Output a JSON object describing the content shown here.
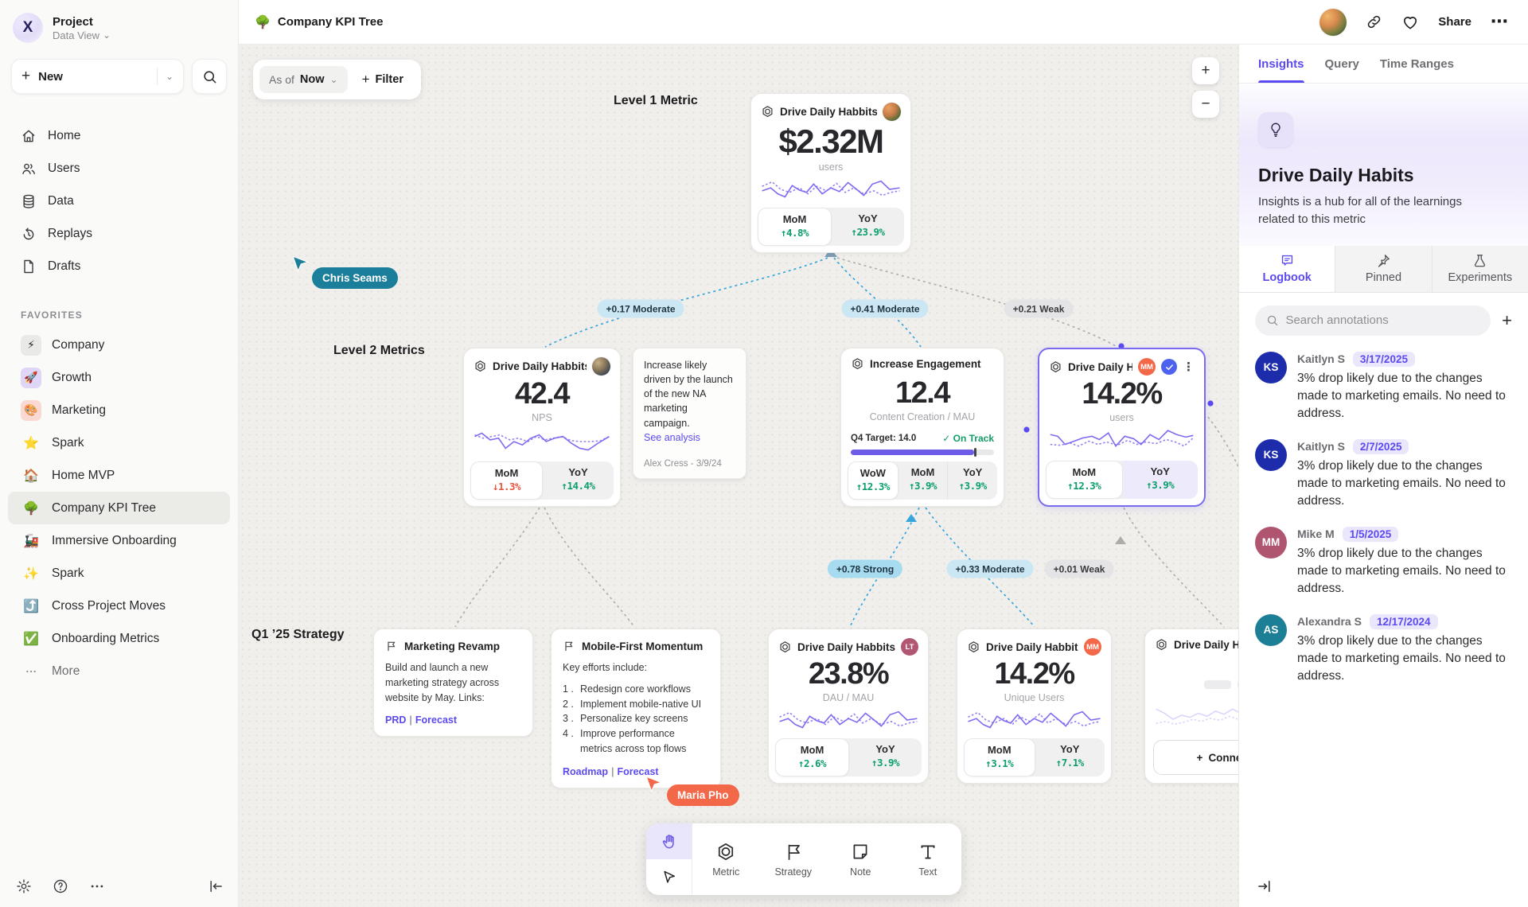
{
  "colors": {
    "accent_purple": "#5b4af0",
    "spark_purple": "#7e6bf2",
    "positive_green": "#0d9e6d",
    "negative_red": "#e2573e",
    "edge_blue": "#36a6dc",
    "edge_gray": "#b3b0ab",
    "cursor_teal": "#1b7e9b",
    "cursor_coral": "#f26849",
    "selected_border": "#7a6cf0"
  },
  "icons": {
    "plus": "+",
    "minus": "−",
    "chevron_down": "⌄",
    "kebab_v": "⋮",
    "kebab_h": "⋯",
    "pipe": "|"
  },
  "sidebar": {
    "logo_letter": "X",
    "project_name": "Project",
    "project_view": "Data View",
    "new_label": "New",
    "nav": [
      {
        "label": "Home"
      },
      {
        "label": "Users"
      },
      {
        "label": "Data"
      },
      {
        "label": "Replays"
      },
      {
        "label": "Drafts"
      }
    ],
    "favorites_title": "FAVORITES",
    "favorites": [
      {
        "icon": "⚡",
        "label": "Company"
      },
      {
        "icon": "🚀",
        "label": "Growth"
      },
      {
        "icon": "🎨",
        "label": "Marketing"
      },
      {
        "icon": "⭐",
        "label": "Spark"
      },
      {
        "icon": "🏠",
        "label": "Home MVP"
      },
      {
        "icon": "🌳",
        "label": "Company KPI Tree"
      },
      {
        "icon": "🚂",
        "label": "Immersive Onboarding"
      },
      {
        "icon": "✨",
        "label": "Spark"
      },
      {
        "icon": "⤴️",
        "label": "Cross Project Moves"
      },
      {
        "icon": "✅",
        "label": "Onboarding Metrics"
      }
    ],
    "more_label": "More"
  },
  "header": {
    "doc_icon": "🌳",
    "title": "Company KPI Tree",
    "share_label": "Share"
  },
  "canvas": {
    "as_of_label": "As of",
    "as_of_value": "Now",
    "filter_label": "Filter",
    "level1_label": "Level 1 Metric",
    "level2_label": "Level 2 Metrics",
    "q1_label": "Q1 ’25 Strategy",
    "edges": [
      {
        "label": "+0.17 Moderate"
      },
      {
        "label": "+0.41 Moderate"
      },
      {
        "label": "+0.21 Weak"
      },
      {
        "label": "+0.78 Strong"
      },
      {
        "label": "+0.33 Moderate"
      },
      {
        "label": "+0.01 Weak"
      }
    ],
    "cursors": [
      {
        "name": "Chris Seams",
        "color": "#1b7e9b"
      },
      {
        "name": "Maria Pho",
        "color": "#f26849"
      }
    ],
    "cards": {
      "l1": {
        "title": "Drive Daily Habbits",
        "value": "$2.32M",
        "unit": "users",
        "stats": [
          {
            "label": "MoM",
            "value": "↑4.8%"
          },
          {
            "label": "YoY",
            "value": "↑23.9%"
          }
        ]
      },
      "l2a": {
        "title": "Drive Daily Habbits",
        "value": "42.4",
        "unit": "NPS",
        "stats": [
          {
            "label": "MoM",
            "value": "↓1.3%"
          },
          {
            "label": "YoY",
            "value": "↑14.4%"
          }
        ]
      },
      "note": {
        "text": "Increase likely driven by the launch of the new NA marketing campaign.",
        "link": "See analysis",
        "author": "Alex Cress - 3/9/24"
      },
      "l2b": {
        "title": "Increase Engagement",
        "value": "12.4",
        "unit": "Content Creation / MAU",
        "target": "Q4 Target: 14.0",
        "status": "✓ On Track",
        "progress_pct": 86,
        "stats": [
          {
            "label": "WoW",
            "value": "↑12.3%"
          },
          {
            "label": "MoM",
            "value": "↑3.9%"
          },
          {
            "label": "YoY",
            "value": "↑3.9%"
          }
        ]
      },
      "l2c": {
        "title": "Drive Daily Habb..",
        "badge": "MM",
        "badge_color": "#f26849",
        "value": "14.2%",
        "unit": "users",
        "stats": [
          {
            "label": "MoM",
            "value": "↑12.3%"
          },
          {
            "label": "YoY",
            "value": "↑3.9%"
          }
        ]
      },
      "s1": {
        "title": "Marketing Revamp",
        "body": "Build and launch a new marketing strategy across website by May. Links:",
        "links": [
          {
            "label": "PRD"
          },
          {
            "label": "Forecast"
          }
        ]
      },
      "s2": {
        "title": "Mobile-First Momentum",
        "intro": "Key efforts include:",
        "items": [
          "Redesign core workflows",
          "Implement mobile-native UI",
          "Personalize key screens",
          "Improve performance metrics across top flows"
        ],
        "links": [
          {
            "label": "Roadmap"
          },
          {
            "label": "Forecast"
          }
        ]
      },
      "q1a": {
        "title": "Drive Daily Habbits",
        "badge": "LT",
        "badge_color": "#b25672",
        "value": "23.8%",
        "unit": "DAU / MAU",
        "stats": [
          {
            "label": "MoM",
            "value": "↑2.6%"
          },
          {
            "label": "YoY",
            "value": "↑3.9%"
          }
        ]
      },
      "q1b": {
        "title": "Drive Daily Habbits",
        "badge": "MM",
        "badge_color": "#f26849",
        "value": "14.2%",
        "unit": "Unique Users",
        "stats": [
          {
            "label": "MoM",
            "value": "↑3.1%"
          },
          {
            "label": "YoY",
            "value": "↑7.1%"
          }
        ]
      },
      "q1c": {
        "title": "Drive Daily Habb..",
        "connect_label": "Connect"
      }
    }
  },
  "toolbar": {
    "tools": [
      {
        "label": "Metric"
      },
      {
        "label": "Strategy"
      },
      {
        "label": "Note"
      },
      {
        "label": "Text"
      }
    ]
  },
  "panel": {
    "tabs": [
      {
        "label": "Insights"
      },
      {
        "label": "Query"
      },
      {
        "label": "Time Ranges"
      }
    ],
    "hero": {
      "title": "Drive Daily Habits",
      "description": "Insights is a hub for all of the learnings related to this metric"
    },
    "subtabs": [
      {
        "label": "Logbook"
      },
      {
        "label": "Pinned"
      },
      {
        "label": "Experiments"
      }
    ],
    "search_placeholder": "Search annotations",
    "annotations": [
      {
        "initials": "KS",
        "color": "#1d2cab",
        "name": "Kaitlyn S",
        "date": "3/17/2025",
        "text": "3% drop likely due to the changes made to marketing emails. No need to address."
      },
      {
        "initials": "KS",
        "color": "#1d2cab",
        "name": "Kaitlyn S",
        "date": "2/7/2025",
        "text": "3% drop likely due to the changes made to marketing emails. No need to address."
      },
      {
        "initials": "MM",
        "color": "#b05570",
        "name": "Mike M",
        "date": "1/5/2025",
        "text": "3% drop likely due to the changes made to marketing emails. No need to address."
      },
      {
        "initials": "AS",
        "color": "#1d7f96",
        "name": "Alexandra S",
        "date": "12/17/2024",
        "text": "3% drop likely due to the changes made to marketing emails. No need to address."
      }
    ]
  }
}
